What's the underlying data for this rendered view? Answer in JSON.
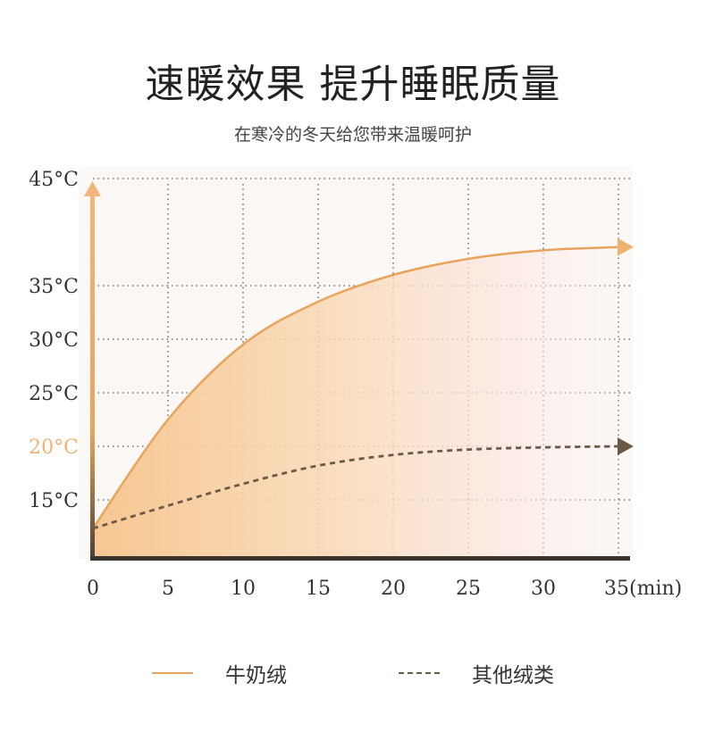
{
  "header": {
    "title": "速暖效果 提升睡眠质量",
    "subtitle": "在寒冷的冬天给您带来温暖呵护"
  },
  "colors": {
    "primary": "#E8A45C",
    "secondary": "#6B5A45",
    "highlight": "#F0B272",
    "axis": "#3a342e"
  },
  "chart_data": {
    "type": "line",
    "x": [
      0,
      5,
      10,
      15,
      20,
      25,
      30,
      35
    ],
    "xticks": [
      "0",
      "5",
      "10",
      "15",
      "20",
      "25",
      "30",
      "35(min)"
    ],
    "yticks": [
      {
        "value": 15,
        "label": "15°C"
      },
      {
        "value": 20,
        "label": "20°C",
        "highlight": true
      },
      {
        "value": 25,
        "label": "25°C"
      },
      {
        "value": 30,
        "label": "30°C"
      },
      {
        "value": 35,
        "label": "35°C"
      },
      {
        "value": 45,
        "label": "45°C"
      }
    ],
    "series": [
      {
        "name": "牛奶绒",
        "style": "solid",
        "area": true,
        "values": [
          10,
          22.5,
          29.5,
          33.5,
          36,
          37.5,
          38.3,
          38.6
        ]
      },
      {
        "name": "其他绒类",
        "style": "dashed",
        "area": false,
        "values": [
          10,
          14,
          16.5,
          18.2,
          19.2,
          19.7,
          19.9,
          20
        ]
      }
    ],
    "grid": true,
    "grid_style": "dotted",
    "legend_position": "bottom"
  },
  "legend": [
    {
      "label": "牛奶绒",
      "style": "solid"
    },
    {
      "label": "其他绒类",
      "style": "dashed"
    }
  ]
}
